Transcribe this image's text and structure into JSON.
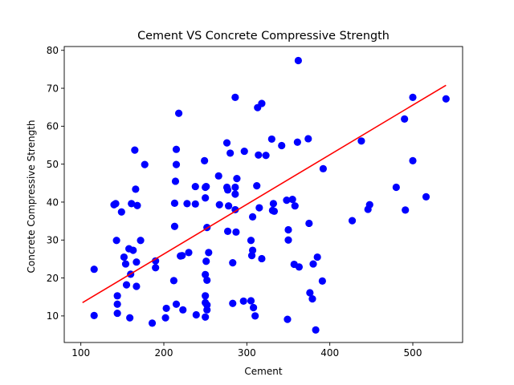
{
  "chart_data": {
    "type": "scatter",
    "title": "Cement VS Concrete Compressive Strength",
    "xlabel": "Cement",
    "ylabel": "Concrete Compressive Strength",
    "xlim": [
      80,
      560
    ],
    "ylim": [
      3,
      81
    ],
    "xticks": [
      100,
      200,
      300,
      400,
      500
    ],
    "yticks": [
      10,
      20,
      30,
      40,
      50,
      60,
      70,
      80
    ],
    "grid": false,
    "colors": {
      "points": "#0000ff",
      "fit_line": "#ff0000",
      "axes": "#000000"
    },
    "series": [
      {
        "kind": "points",
        "points": [
          [
            116,
            22.3
          ],
          [
            116,
            10.1
          ],
          [
            140,
            39.3
          ],
          [
            142,
            39.6
          ],
          [
            143,
            29.9
          ],
          [
            144,
            15.3
          ],
          [
            144,
            13.1
          ],
          [
            144,
            10.7
          ],
          [
            149,
            37.4
          ],
          [
            152,
            25.5
          ],
          [
            154,
            23.7
          ],
          [
            155,
            18.2
          ],
          [
            158,
            27.7
          ],
          [
            159,
            9.5
          ],
          [
            160,
            21.0
          ],
          [
            161,
            39.6
          ],
          [
            163,
            27.3
          ],
          [
            165,
            53.7
          ],
          [
            166,
            43.4
          ],
          [
            167,
            24.2
          ],
          [
            167,
            17.8
          ],
          [
            168,
            39.1
          ],
          [
            172,
            29.9
          ],
          [
            177,
            49.9
          ],
          [
            186,
            8.1
          ],
          [
            190,
            24.5
          ],
          [
            190,
            22.7
          ],
          [
            202,
            9.5
          ],
          [
            203,
            12.0
          ],
          [
            212,
            19.3
          ],
          [
            213,
            39.7
          ],
          [
            213,
            33.6
          ],
          [
            214,
            45.5
          ],
          [
            215,
            49.9
          ],
          [
            215,
            53.9
          ],
          [
            215,
            13.1
          ],
          [
            218,
            63.4
          ],
          [
            220,
            25.8
          ],
          [
            222,
            25.9
          ],
          [
            223,
            11.6
          ],
          [
            228,
            39.6
          ],
          [
            230,
            26.7
          ],
          [
            238,
            44.1
          ],
          [
            238,
            39.5
          ],
          [
            239,
            10.3
          ],
          [
            249,
            50.9
          ],
          [
            250,
            43.9
          ],
          [
            250,
            41.1
          ],
          [
            250,
            20.9
          ],
          [
            250,
            15.3
          ],
          [
            250,
            13.5
          ],
          [
            250,
            9.7
          ],
          [
            251,
            44.1
          ],
          [
            251,
            24.4
          ],
          [
            252,
            33.3
          ],
          [
            252,
            19.4
          ],
          [
            252,
            12.9
          ],
          [
            252,
            11.6
          ],
          [
            254,
            26.7
          ],
          [
            266,
            46.9
          ],
          [
            267,
            39.3
          ],
          [
            276,
            43.9
          ],
          [
            276,
            55.6
          ],
          [
            277,
            32.3
          ],
          [
            277,
            43.2
          ],
          [
            278,
            39.0
          ],
          [
            280,
            52.9
          ],
          [
            283,
            24.0
          ],
          [
            283,
            13.3
          ],
          [
            286,
            67.6
          ],
          [
            286,
            43.9
          ],
          [
            286,
            42.1
          ],
          [
            286,
            38.0
          ],
          [
            287,
            32.1
          ],
          [
            288,
            46.2
          ],
          [
            296,
            13.9
          ],
          [
            297,
            53.4
          ],
          [
            305,
            29.9
          ],
          [
            305,
            14.0
          ],
          [
            306,
            25.9
          ],
          [
            307,
            27.3
          ],
          [
            307,
            36.1
          ],
          [
            308,
            12.2
          ],
          [
            310,
            10.0
          ],
          [
            312,
            44.3
          ],
          [
            313,
            64.9
          ],
          [
            314,
            52.4
          ],
          [
            315,
            38.5
          ],
          [
            318,
            66.0
          ],
          [
            318,
            25.1
          ],
          [
            323,
            52.3
          ],
          [
            330,
            56.6
          ],
          [
            331,
            37.8
          ],
          [
            332,
            39.6
          ],
          [
            333,
            37.6
          ],
          [
            342,
            54.9
          ],
          [
            348,
            40.5
          ],
          [
            349,
            9.1
          ],
          [
            350,
            32.7
          ],
          [
            350,
            30.0
          ],
          [
            355,
            40.7
          ],
          [
            357,
            23.6
          ],
          [
            358,
            39.0
          ],
          [
            361,
            55.8
          ],
          [
            362,
            77.3
          ],
          [
            363,
            22.9
          ],
          [
            374,
            56.7
          ],
          [
            375,
            34.4
          ],
          [
            376,
            16.1
          ],
          [
            379,
            14.5
          ],
          [
            380,
            23.7
          ],
          [
            383,
            6.3
          ],
          [
            385,
            25.5
          ],
          [
            391,
            19.2
          ],
          [
            392,
            48.8
          ],
          [
            427,
            35.1
          ],
          [
            438,
            56.1
          ],
          [
            446,
            38.1
          ],
          [
            448,
            39.3
          ],
          [
            480,
            43.9
          ],
          [
            490,
            61.9
          ],
          [
            491,
            37.9
          ],
          [
            500,
            67.6
          ],
          [
            500,
            50.9
          ],
          [
            516,
            41.4
          ],
          [
            540,
            67.2
          ]
        ]
      },
      {
        "kind": "fit",
        "points": [
          [
            102,
            13.5
          ],
          [
            540,
            70.8
          ]
        ]
      }
    ]
  }
}
